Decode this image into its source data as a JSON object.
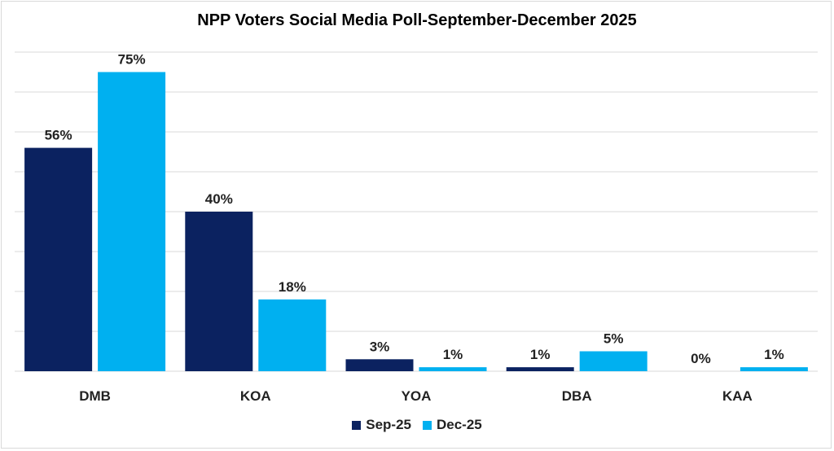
{
  "chart_data": {
    "type": "bar",
    "title": "NPP Voters Social Media Poll-September-December 2025",
    "categories": [
      "DMB",
      "KOA",
      "YOA",
      "DBA",
      "KAA"
    ],
    "series": [
      {
        "name": "Sep-25",
        "color": "#0b2260",
        "values": [
          56,
          40,
          3,
          1,
          0
        ],
        "labels": [
          "56%",
          "40%",
          "3%",
          "1%",
          "0%"
        ]
      },
      {
        "name": "Dec-25",
        "color": "#00b0f0",
        "values": [
          75,
          18,
          1,
          5,
          1
        ],
        "labels": [
          "75%",
          "18%",
          "1%",
          "5%",
          "1%"
        ]
      }
    ],
    "ylim": [
      0,
      80
    ],
    "grid": true,
    "legend": "bottom",
    "unit": "%"
  }
}
